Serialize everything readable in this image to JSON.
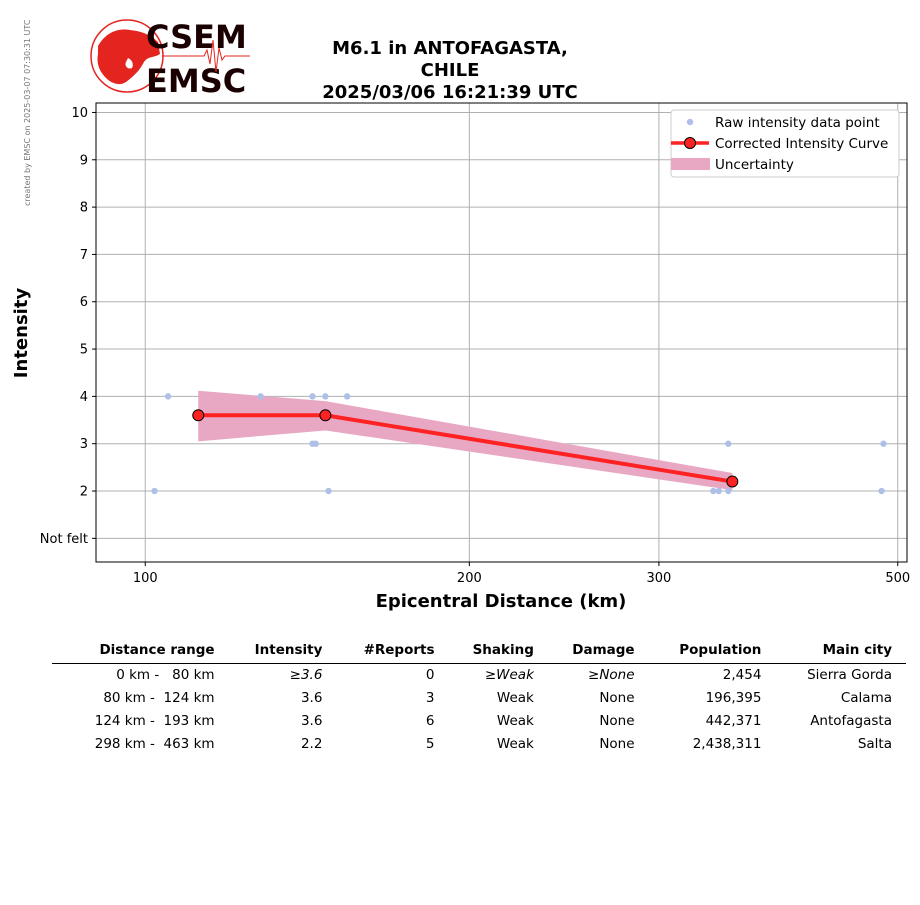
{
  "credit": "created by EMSC on 2025-03-07 07:30:31 UTC",
  "logo": {
    "line1": "CSEM",
    "line2": "EMSC",
    "color": "#e4251f"
  },
  "title_line1": "M6.1 in ANTOFAGASTA, CHILE",
  "title_line2": "2025/03/06 16:21:39 UTC",
  "chart_data": {
    "type": "line",
    "xlabel": "Epicentral Distance (km)",
    "ylabel": "Intensity",
    "x_scale": "log",
    "xlim": [
      90,
      510
    ],
    "ylim": [
      0.5,
      10.2
    ],
    "x_ticks": [
      100,
      200,
      300,
      500
    ],
    "x_tick_labels": [
      "100",
      "200",
      "300",
      "500"
    ],
    "y_ticks": [
      1,
      2,
      3,
      4,
      5,
      6,
      7,
      8,
      9,
      10
    ],
    "y_tick_labels": [
      "Not felt",
      "2",
      "3",
      "4",
      "5",
      "6",
      "7",
      "8",
      "9",
      "10"
    ],
    "grid": true,
    "legend_position": "top-right",
    "legend": [
      "Raw intensity data point",
      "Corrected Intensity Curve",
      "Uncertainty"
    ],
    "colors": {
      "raw": "#aec0e8",
      "curve": "#ff2222",
      "band": "#e8a8c4"
    },
    "raw_points": [
      {
        "x": 102,
        "y": 2
      },
      {
        "x": 105,
        "y": 4
      },
      {
        "x": 128,
        "y": 4
      },
      {
        "x": 143,
        "y": 4
      },
      {
        "x": 143,
        "y": 3
      },
      {
        "x": 144,
        "y": 3
      },
      {
        "x": 147,
        "y": 4
      },
      {
        "x": 148,
        "y": 2
      },
      {
        "x": 154,
        "y": 4
      },
      {
        "x": 337,
        "y": 2
      },
      {
        "x": 341,
        "y": 2
      },
      {
        "x": 348,
        "y": 2
      },
      {
        "x": 348,
        "y": 3
      },
      {
        "x": 483,
        "y": 2
      },
      {
        "x": 485,
        "y": 3
      }
    ],
    "curve": [
      {
        "x": 112,
        "y": 3.6
      },
      {
        "x": 147,
        "y": 3.6
      },
      {
        "x": 351,
        "y": 2.2
      }
    ],
    "uncertainty": [
      {
        "x": 112,
        "lo": 3.05,
        "hi": 4.12
      },
      {
        "x": 147,
        "lo": 3.28,
        "hi": 3.9
      },
      {
        "x": 351,
        "lo": 2.02,
        "hi": 2.38
      }
    ]
  },
  "table": {
    "headers": [
      "Distance range",
      "Intensity",
      "#Reports",
      "Shaking",
      "Damage",
      "Population",
      "Main city"
    ],
    "rows": [
      [
        "0 km -   80 km",
        "≥3.6",
        "0",
        "≥Weak",
        "≥None",
        "2,454",
        "Sierra Gorda"
      ],
      [
        "80 km -  124 km",
        "3.6",
        "3",
        "Weak",
        "None",
        "196,395",
        "Calama"
      ],
      [
        "124 km -  193 km",
        "3.6",
        "6",
        "Weak",
        "None",
        "442,371",
        "Antofagasta"
      ],
      [
        "298 km -  463 km",
        "2.2",
        "5",
        "Weak",
        "None",
        "2,438,311",
        "Salta"
      ]
    ]
  }
}
